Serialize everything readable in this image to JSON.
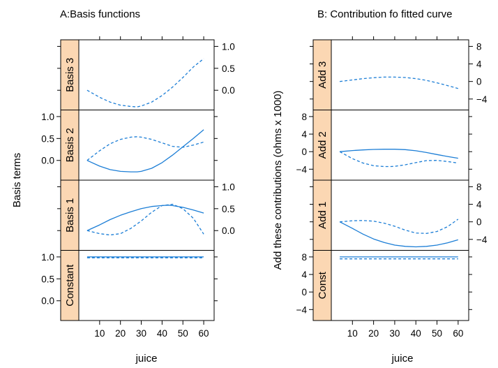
{
  "chart_data": [
    {
      "type": "line",
      "title": "A:Basis functions",
      "xlabel": "juice",
      "ylabel": "Basis terms",
      "xlim": [
        0,
        65
      ],
      "xticks": [
        10,
        20,
        30,
        40,
        50,
        60
      ],
      "panels": [
        {
          "strip": "Basis 3",
          "ylim": [
            -0.45,
            1.15
          ],
          "yticks": [
            "0.0",
            "0.5",
            "1.0"
          ],
          "ytick_values": [
            0,
            0.5,
            1
          ],
          "yaxis_side": "right",
          "series": [
            {
              "style": "dashed",
              "x": [
                4,
                10,
                15,
                20,
                25,
                28,
                30,
                35,
                40,
                45,
                50,
                55,
                60
              ],
              "y": [
                0.0,
                -0.16,
                -0.27,
                -0.34,
                -0.37,
                -0.38,
                -0.36,
                -0.27,
                -0.12,
                0.07,
                0.29,
                0.53,
                0.72
              ]
            }
          ]
        },
        {
          "strip": "Basis 2",
          "ylim": [
            -0.45,
            1.15
          ],
          "yticks": [
            "0.0",
            "0.5",
            "1.0"
          ],
          "ytick_values": [
            0,
            0.5,
            1
          ],
          "yaxis_side": "left",
          "series": [
            {
              "style": "solid",
              "x": [
                4,
                10,
                15,
                20,
                25,
                28,
                30,
                35,
                40,
                45,
                50,
                55,
                60
              ],
              "y": [
                0.0,
                -0.13,
                -0.21,
                -0.25,
                -0.26,
                -0.26,
                -0.25,
                -0.18,
                -0.05,
                0.12,
                0.31,
                0.5,
                0.7
              ]
            },
            {
              "style": "dashed",
              "x": [
                4,
                10,
                15,
                20,
                25,
                28,
                30,
                35,
                40,
                45,
                50,
                55,
                60
              ],
              "y": [
                0.0,
                0.22,
                0.38,
                0.48,
                0.53,
                0.54,
                0.53,
                0.48,
                0.4,
                0.32,
                0.3,
                0.35,
                0.42
              ]
            }
          ]
        },
        {
          "strip": "Basis 1",
          "ylim": [
            -0.45,
            1.15
          ],
          "yticks": [
            "0.0",
            "0.5",
            "1.0"
          ],
          "ytick_values": [
            0,
            0.5,
            1
          ],
          "yaxis_side": "right",
          "series": [
            {
              "style": "solid",
              "x": [
                4,
                10,
                15,
                20,
                25,
                30,
                35,
                40,
                43,
                45,
                50,
                55,
                60
              ],
              "y": [
                0.0,
                0.13,
                0.25,
                0.35,
                0.43,
                0.5,
                0.55,
                0.57,
                0.58,
                0.57,
                0.53,
                0.47,
                0.4
              ]
            },
            {
              "style": "dashed",
              "x": [
                4,
                10,
                15,
                20,
                25,
                30,
                35,
                40,
                45,
                50,
                55,
                60
              ],
              "y": [
                0.0,
                -0.07,
                -0.1,
                -0.07,
                0.05,
                0.22,
                0.42,
                0.57,
                0.6,
                0.5,
                0.28,
                -0.08
              ]
            }
          ]
        },
        {
          "strip": "Constant",
          "ylim": [
            -0.45,
            1.15
          ],
          "yticks": [
            "0.0",
            "0.5",
            "1.0"
          ],
          "ytick_values": [
            0,
            0.5,
            1
          ],
          "yaxis_side": "left",
          "series": [
            {
              "style": "solid",
              "x": [
                4,
                60
              ],
              "y": [
                1.0,
                1.0
              ]
            },
            {
              "style": "dashed",
              "x": [
                4,
                60
              ],
              "y": [
                0.98,
                0.98
              ]
            }
          ]
        }
      ]
    },
    {
      "type": "line",
      "title": "B: Contribution fo fitted curve",
      "xlabel": "juice",
      "ylabel": "Add these contributions (ohms x 1000)",
      "xlim": [
        0,
        65
      ],
      "xticks": [
        10,
        20,
        30,
        40,
        50,
        60
      ],
      "panels": [
        {
          "strip": "Add 3",
          "ylim": [
            -6.5,
            9.5
          ],
          "yticks": [
            "−4",
            "0",
            "4",
            "8"
          ],
          "ytick_values": [
            -4,
            0,
            4,
            8
          ],
          "yaxis_side": "right",
          "series": [
            {
              "style": "dashed",
              "x": [
                4,
                10,
                15,
                20,
                25,
                30,
                35,
                40,
                45,
                50,
                55,
                60
              ],
              "y": [
                0.0,
                0.35,
                0.65,
                0.85,
                1.0,
                1.0,
                0.9,
                0.65,
                0.25,
                -0.3,
                -0.95,
                -1.6
              ]
            }
          ]
        },
        {
          "strip": "Add 2",
          "ylim": [
            -6.5,
            9.5
          ],
          "yticks": [
            "−4",
            "0",
            "4",
            "8"
          ],
          "ytick_values": [
            -4,
            0,
            4,
            8
          ],
          "yaxis_side": "left",
          "series": [
            {
              "style": "solid",
              "x": [
                4,
                10,
                15,
                20,
                25,
                30,
                35,
                40,
                45,
                50,
                55,
                60
              ],
              "y": [
                0.0,
                0.25,
                0.4,
                0.5,
                0.55,
                0.55,
                0.45,
                0.2,
                -0.2,
                -0.65,
                -1.1,
                -1.5
              ]
            },
            {
              "style": "dashed",
              "x": [
                4,
                10,
                15,
                20,
                25,
                28,
                30,
                35,
                40,
                45,
                50,
                55,
                60
              ],
              "y": [
                0.0,
                -1.6,
                -2.6,
                -3.2,
                -3.4,
                -3.4,
                -3.35,
                -3.0,
                -2.5,
                -2.05,
                -2.0,
                -2.25,
                -2.6
              ]
            }
          ]
        },
        {
          "strip": "Add 1",
          "ylim": [
            -6.5,
            9.5
          ],
          "yticks": [
            "−4",
            "0",
            "4",
            "8"
          ],
          "ytick_values": [
            -4,
            0,
            4,
            8
          ],
          "yaxis_side": "right",
          "series": [
            {
              "style": "solid",
              "x": [
                4,
                10,
                15,
                20,
                25,
                30,
                35,
                40,
                45,
                50,
                55,
                60
              ],
              "y": [
                0.0,
                -1.5,
                -2.8,
                -3.9,
                -4.7,
                -5.3,
                -5.6,
                -5.7,
                -5.6,
                -5.3,
                -4.8,
                -4.1
              ]
            },
            {
              "style": "dashed",
              "x": [
                4,
                10,
                15,
                20,
                25,
                30,
                35,
                40,
                45,
                50,
                55,
                60
              ],
              "y": [
                0.0,
                0.25,
                0.3,
                0.15,
                -0.3,
                -1.0,
                -1.9,
                -2.55,
                -2.65,
                -2.2,
                -1.1,
                0.6
              ]
            }
          ]
        },
        {
          "strip": "Const",
          "ylim": [
            -6.5,
            9.5
          ],
          "yticks": [
            "−4",
            "0",
            "4",
            "8"
          ],
          "ytick_values": [
            -4,
            0,
            4,
            8
          ],
          "yaxis_side": "left",
          "series": [
            {
              "style": "solid",
              "x": [
                4,
                60
              ],
              "y": [
                8.0,
                8.0
              ]
            },
            {
              "style": "dashed",
              "x": [
                4,
                60
              ],
              "y": [
                7.55,
                7.55
              ]
            }
          ]
        }
      ]
    }
  ],
  "colors": {
    "line": "#1c7ed6",
    "strip_fill": "#fbd7b3",
    "frame": "#000000"
  }
}
